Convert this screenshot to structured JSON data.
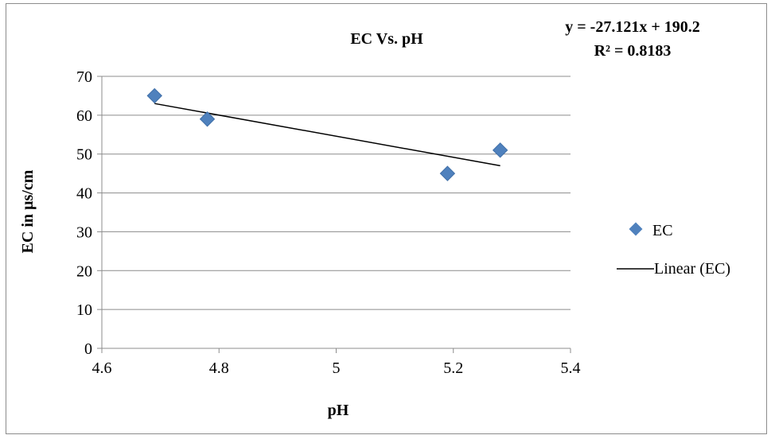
{
  "chart_data": {
    "type": "scatter",
    "title": "EC Vs. pH",
    "xlabel": "pH",
    "ylabel": "EC in µs/cm",
    "xlim": [
      4.6,
      5.4
    ],
    "ylim": [
      0,
      70
    ],
    "x_ticks": [
      "4.6",
      "4.8",
      "5",
      "5.2",
      "5.4"
    ],
    "y_ticks": [
      "0",
      "10",
      "20",
      "30",
      "40",
      "50",
      "60",
      "70"
    ],
    "grid": "horizontal",
    "legend_position": "right",
    "series": [
      {
        "name": "EC",
        "color": "#4f81bd",
        "marker": "diamond",
        "points": [
          {
            "x": 4.69,
            "y": 65
          },
          {
            "x": 4.78,
            "y": 59
          },
          {
            "x": 5.19,
            "y": 45
          },
          {
            "x": 5.28,
            "y": 51
          }
        ]
      }
    ],
    "trendline": {
      "name": "Linear (EC)",
      "type": "linear",
      "color": "#000000",
      "slope": -27.121,
      "intercept": 190.2,
      "x_range": [
        4.69,
        5.28
      ],
      "equation_label": "y = -27.121x + 190.2",
      "r2_label": "R² = 0.8183"
    }
  }
}
